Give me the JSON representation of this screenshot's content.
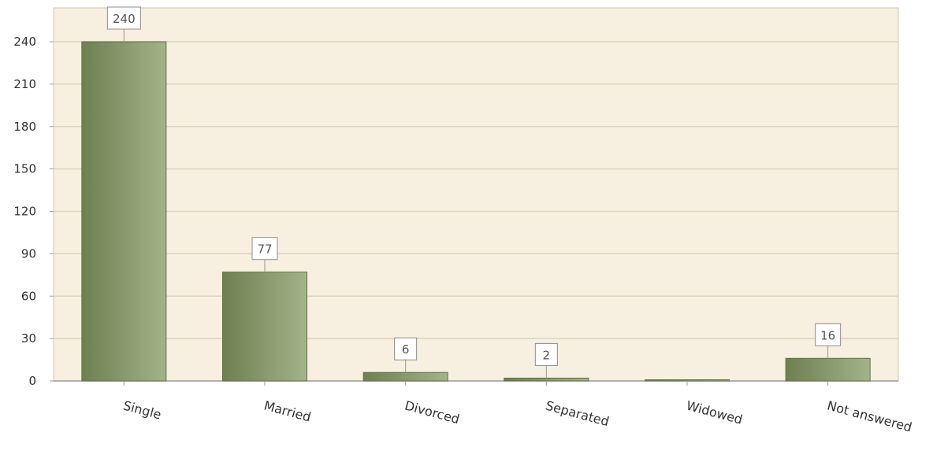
{
  "chart_data": {
    "type": "bar",
    "title": "",
    "xlabel": "",
    "ylabel": "",
    "categories": [
      "Single",
      "Married",
      "Divorced",
      "Separated",
      "Widowed",
      "Not answered"
    ],
    "values": [
      240,
      77,
      6,
      2,
      0,
      16
    ],
    "data_labels": [
      "240",
      "77",
      "6",
      "2",
      "",
      "16"
    ],
    "ylim": [
      0,
      252
    ],
    "yticks": [
      0,
      30,
      60,
      90,
      120,
      150,
      180,
      210,
      240
    ],
    "grid": true,
    "legend": "none",
    "colors": {
      "plot_background": "#f7efdf",
      "bar_dark": "#6d8050",
      "bar_light": "#a3b38a",
      "gridline": "#ddd3bf",
      "axis": "#9a9a9a"
    }
  }
}
